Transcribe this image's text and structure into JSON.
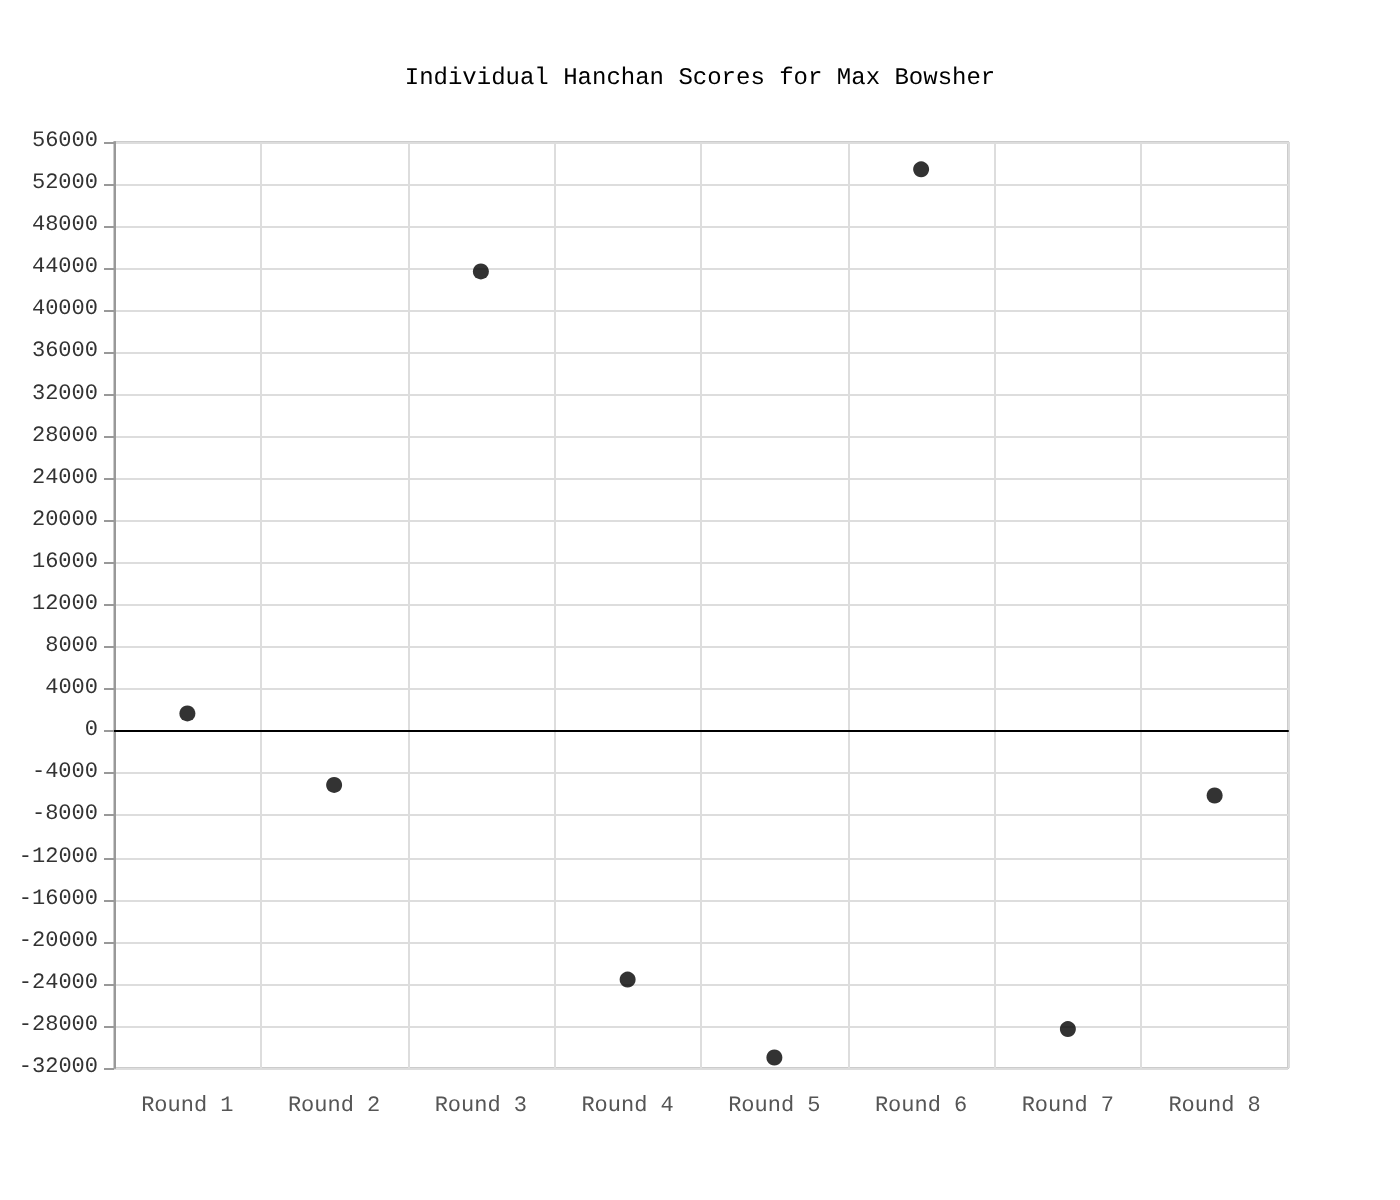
{
  "chart_data": {
    "type": "scatter",
    "title": "Individual Hanchan Scores for Max Bowsher",
    "categories": [
      "Round 1",
      "Round 2",
      "Round 3",
      "Round 4",
      "Round 5",
      "Round 6",
      "Round 7",
      "Round 8"
    ],
    "values": [
      1700,
      -5100,
      43700,
      -23600,
      -31000,
      53400,
      -28300,
      -6100
    ],
    "color": "#000000",
    "marker": "circle",
    "grid": true,
    "ylim": [
      -32000,
      56000
    ],
    "yticks": [
      -32000,
      -28000,
      -24000,
      -20000,
      -16000,
      -12000,
      -8000,
      -4000,
      0,
      4000,
      8000,
      12000,
      16000,
      20000,
      24000,
      28000,
      32000,
      36000,
      40000,
      44000,
      48000,
      52000,
      56000
    ]
  }
}
